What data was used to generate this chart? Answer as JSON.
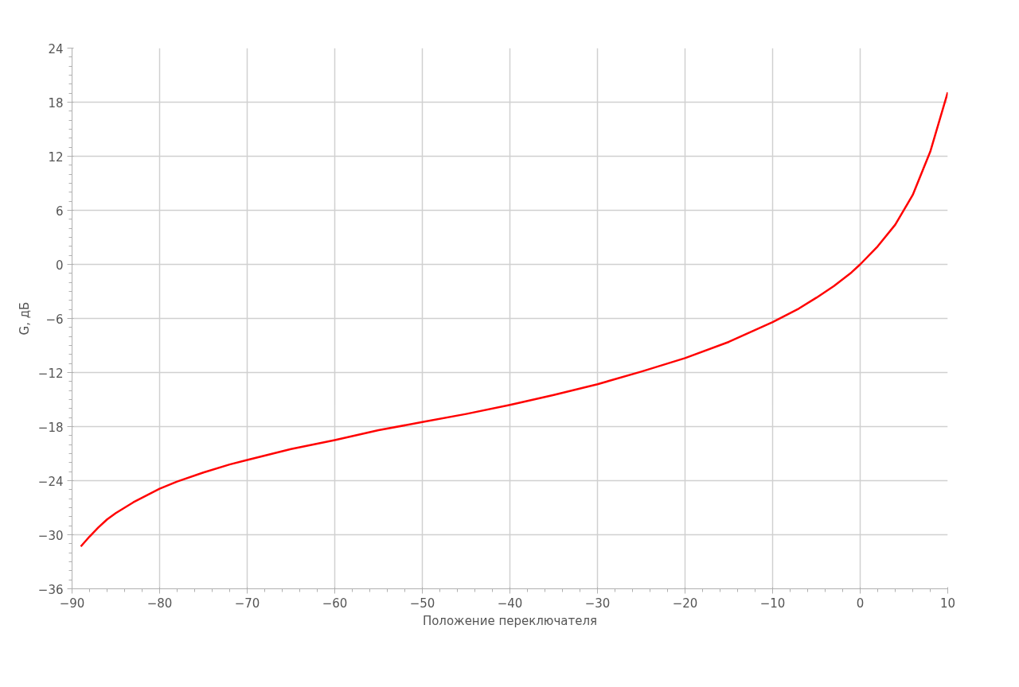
{
  "chart_data": {
    "type": "line",
    "xlabel": "Положение переключателя",
    "ylabel": "G, дБ",
    "x": [
      -89,
      -88,
      -87,
      -86,
      -85,
      -83,
      -80,
      -78,
      -75,
      -72,
      -70,
      -65,
      -60,
      -55,
      -50,
      -45,
      -40,
      -35,
      -30,
      -25,
      -20,
      -15,
      -10,
      -7,
      -5,
      -3,
      -1,
      0,
      2,
      4,
      6,
      8,
      10
    ],
    "series": [
      {
        "color": "#ff0000",
        "values": [
          -31.3,
          -30.2,
          -29.2,
          -28.3,
          -27.6,
          -26.4,
          -24.9,
          -24.1,
          -23.1,
          -22.2,
          -21.7,
          -20.5,
          -19.5,
          -18.4,
          -17.5,
          -16.6,
          -15.6,
          -14.5,
          -13.3,
          -11.9,
          -10.4,
          -8.6,
          -6.4,
          -4.9,
          -3.7,
          -2.4,
          -0.9,
          0,
          2.0,
          4.4,
          7.7,
          12.5,
          19.1
        ]
      }
    ],
    "xlim": [
      -90,
      10
    ],
    "xticks": [
      -90,
      -80,
      -70,
      -60,
      -50,
      -40,
      -30,
      -20,
      -10,
      0,
      10
    ],
    "ylim": [
      -36,
      24
    ],
    "yticks": [
      -36,
      -30,
      -24,
      -18,
      -12,
      -6,
      0,
      6,
      12,
      18,
      24
    ],
    "grid": true,
    "line_style": "solid"
  }
}
